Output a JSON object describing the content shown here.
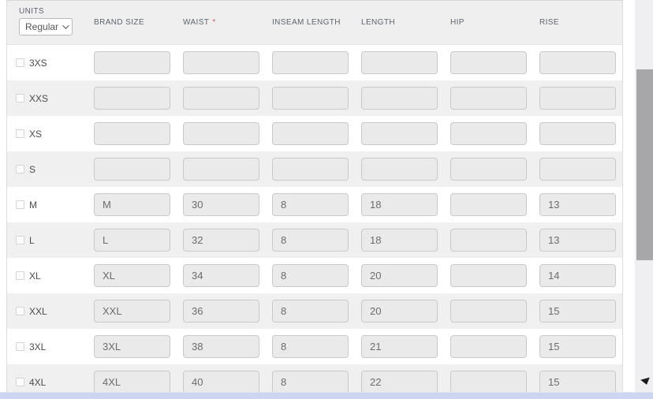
{
  "header": {
    "units_label": "UNITS",
    "units_value": "Regular",
    "required_marker": "*",
    "columns": [
      {
        "key": "brand_size",
        "label": "BRAND SIZE",
        "required": false
      },
      {
        "key": "waist",
        "label": "WAIST",
        "required": true
      },
      {
        "key": "inseam_length",
        "label": "INSEAM LENGTH",
        "required": false
      },
      {
        "key": "length",
        "label": "LENGTH",
        "required": false
      },
      {
        "key": "hip",
        "label": "HIP",
        "required": false
      },
      {
        "key": "rise",
        "label": "RISE",
        "required": false
      }
    ]
  },
  "rows": [
    {
      "size": "3XS",
      "checked": false,
      "values": [
        "",
        "",
        "",
        "",
        "",
        ""
      ]
    },
    {
      "size": "XXS",
      "checked": false,
      "values": [
        "",
        "",
        "",
        "",
        "",
        ""
      ]
    },
    {
      "size": "XS",
      "checked": false,
      "values": [
        "",
        "",
        "",
        "",
        "",
        ""
      ]
    },
    {
      "size": "S",
      "checked": false,
      "values": [
        "",
        "",
        "",
        "",
        "",
        ""
      ]
    },
    {
      "size": "M",
      "checked": false,
      "values": [
        "M",
        "30",
        "8",
        "18",
        "",
        "13"
      ]
    },
    {
      "size": "L",
      "checked": false,
      "values": [
        "L",
        "32",
        "8",
        "18",
        "",
        "13"
      ]
    },
    {
      "size": "XL",
      "checked": false,
      "values": [
        "XL",
        "34",
        "8",
        "20",
        "",
        "14"
      ]
    },
    {
      "size": "XXL",
      "checked": false,
      "values": [
        "XXL",
        "36",
        "8",
        "20",
        "",
        "15"
      ]
    },
    {
      "size": "3XL",
      "checked": false,
      "values": [
        "3XL",
        "38",
        "8",
        "21",
        "",
        "15"
      ]
    },
    {
      "size": "4XL",
      "checked": false,
      "values": [
        "4XL",
        "40",
        "8",
        "22",
        "",
        "15"
      ]
    }
  ],
  "icons": {
    "units_dropdown": "chevron-down-icon",
    "bottom_right": "triangle-down-icon"
  },
  "colors": {
    "header_bg": "#efeff0",
    "row_stripe": "#f1f0f1",
    "input_bg": "#ebeaeb",
    "input_border": "#c9c9c9",
    "header_text": "#5d6470",
    "required_asterisk": "#c75b5b",
    "scrollbar_thumb": "#a7a6a9",
    "horizontal_scrollbar": "#cdd6f1"
  }
}
